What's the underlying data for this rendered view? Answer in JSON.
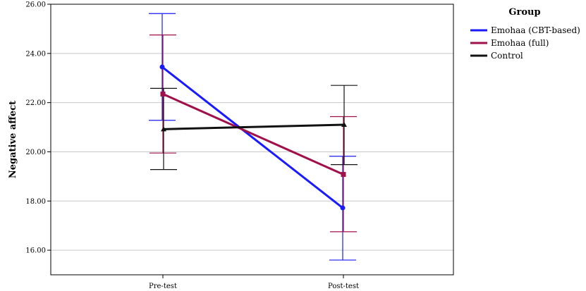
{
  "chart_data": {
    "type": "line",
    "title": "",
    "xlabel": "",
    "ylabel": "Negative affect",
    "categories": [
      "Pre-test",
      "Post-test"
    ],
    "y_tick_labels": [
      "16.00",
      "18.00",
      "20.00",
      "22.00",
      "24.00",
      "26.00"
    ],
    "ylim": [
      15.0,
      26.0
    ],
    "grid": "horizontal",
    "legend": {
      "title": "Group",
      "placement": "right"
    },
    "series": [
      {
        "name": "Emohaa (CBT-based)",
        "color": "#1a1aff",
        "marker": "circle",
        "values": [
          23.45,
          17.72
        ],
        "ci_low": [
          21.28,
          15.6
        ],
        "ci_high": [
          25.62,
          19.82
        ]
      },
      {
        "name": "Emohaa (full)",
        "color": "#a0104a",
        "marker": "square",
        "values": [
          22.35,
          19.08
        ],
        "ci_low": [
          19.95,
          16.75
        ],
        "ci_high": [
          24.75,
          21.43
        ]
      },
      {
        "name": "Control",
        "color": "#111111",
        "marker": "triangle",
        "values": [
          20.92,
          21.1
        ],
        "ci_low": [
          19.28,
          19.48
        ],
        "ci_high": [
          22.58,
          22.7
        ]
      }
    ]
  }
}
